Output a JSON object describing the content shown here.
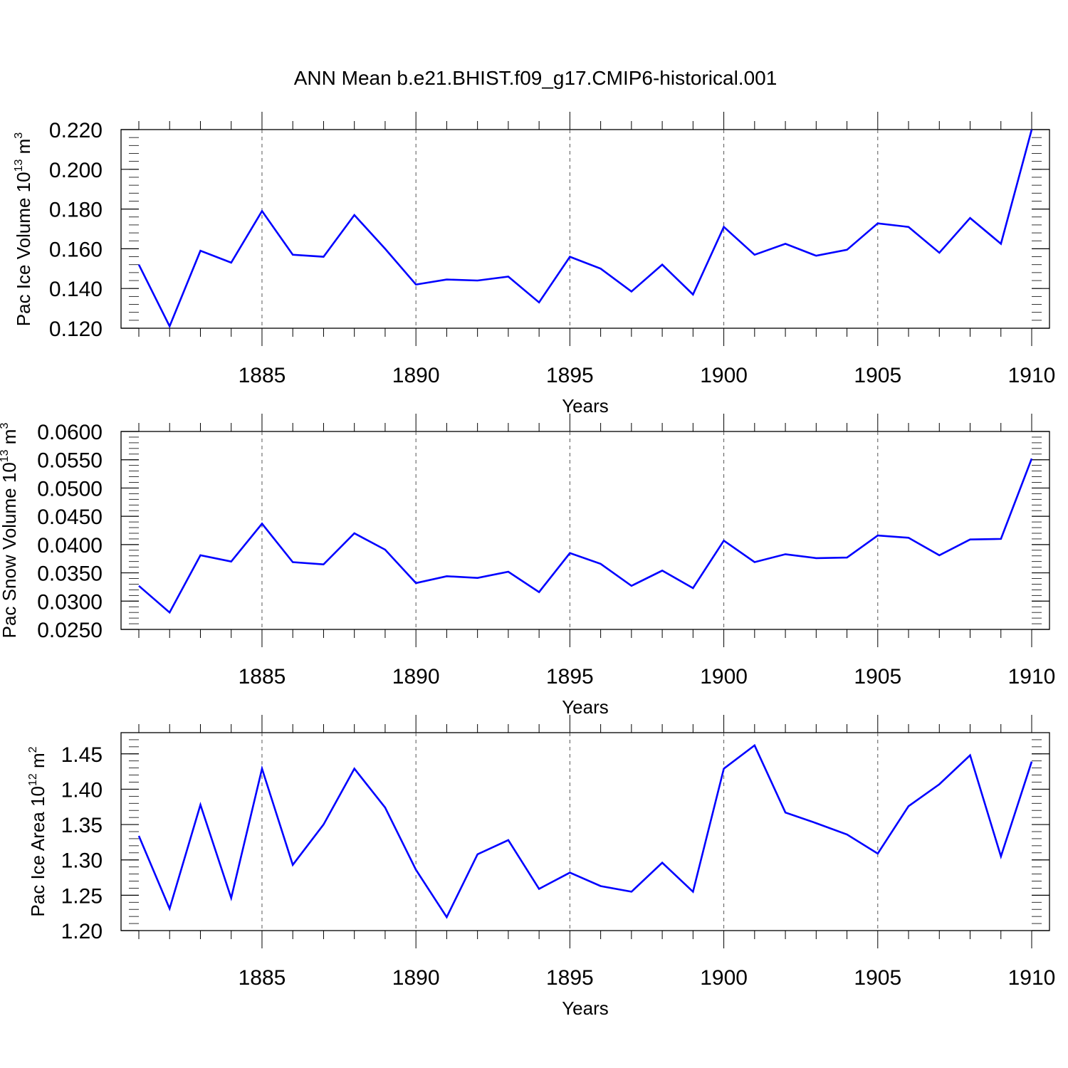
{
  "title": "ANN Mean b.e21.BHIST.f09_g17.CMIP6-historical.001",
  "colors": {
    "line": "#0000ff",
    "axis": "#000000",
    "grid": "#555555",
    "background": "#ffffff"
  },
  "chart_data": [
    {
      "type": "line",
      "ylabel": {
        "text": "Pac Ice Volume 10",
        "sup": "13",
        "unit": " m",
        "unit_sup": "3"
      },
      "xlabel": "Years",
      "xlim": [
        1881,
        1910
      ],
      "ylim": [
        0.12,
        0.22
      ],
      "yticks": [
        "0.120",
        "0.140",
        "0.160",
        "0.180",
        "0.200",
        "0.220"
      ],
      "xticks": [
        "1885",
        "1890",
        "1895",
        "1900",
        "1905",
        "1910"
      ],
      "grid": "dashed vertical at major x ticks",
      "series": [
        {
          "x": [
            1881,
            1882,
            1883,
            1884,
            1885,
            1886,
            1887,
            1888,
            1889,
            1890,
            1891,
            1892,
            1893,
            1894,
            1895,
            1896,
            1897,
            1898,
            1899,
            1900,
            1901,
            1902,
            1903,
            1904,
            1905,
            1906,
            1907,
            1908,
            1909,
            1910
          ],
          "values": [
            0.152,
            0.121,
            0.159,
            0.153,
            0.179,
            0.157,
            0.156,
            0.177,
            0.16,
            0.142,
            0.1445,
            0.144,
            0.146,
            0.133,
            0.156,
            0.15,
            0.1385,
            0.152,
            0.137,
            0.171,
            0.157,
            0.1625,
            0.1565,
            0.1595,
            0.1728,
            0.171,
            0.158,
            0.1755,
            0.1625,
            0.22
          ]
        }
      ]
    },
    {
      "type": "line",
      "ylabel": {
        "text": "Pac Snow Volume 10",
        "sup": "13",
        "unit": " m",
        "unit_sup": "3"
      },
      "xlabel": "Years",
      "xlim": [
        1881,
        1910
      ],
      "ylim": [
        0.025,
        0.06
      ],
      "yticks": [
        "0.0250",
        "0.0300",
        "0.0350",
        "0.0400",
        "0.0450",
        "0.0500",
        "0.0550",
        "0.0600"
      ],
      "xticks": [
        "1885",
        "1890",
        "1895",
        "1900",
        "1905",
        "1910"
      ],
      "grid": "dashed vertical at major x ticks",
      "series": [
        {
          "x": [
            1881,
            1882,
            1883,
            1884,
            1885,
            1886,
            1887,
            1888,
            1889,
            1890,
            1891,
            1892,
            1893,
            1894,
            1895,
            1896,
            1897,
            1898,
            1899,
            1900,
            1901,
            1902,
            1903,
            1904,
            1905,
            1906,
            1907,
            1908,
            1909,
            1910
          ],
          "values": [
            0.0327,
            0.028,
            0.0381,
            0.037,
            0.0437,
            0.0369,
            0.0365,
            0.042,
            0.0391,
            0.0332,
            0.0344,
            0.0341,
            0.0352,
            0.0316,
            0.0385,
            0.0366,
            0.0327,
            0.0354,
            0.0323,
            0.0407,
            0.0369,
            0.0383,
            0.0376,
            0.0377,
            0.0416,
            0.0412,
            0.0381,
            0.0409,
            0.041,
            0.0552
          ]
        }
      ]
    },
    {
      "type": "line",
      "ylabel": {
        "text": "Pac Ice Area 10",
        "sup": "12",
        "unit": " m",
        "unit_sup": "2"
      },
      "xlabel": "Years",
      "xlim": [
        1881,
        1910
      ],
      "ylim": [
        1.2,
        1.48
      ],
      "yticks": [
        "1.20",
        "1.25",
        "1.30",
        "1.35",
        "1.40",
        "1.45"
      ],
      "xticks": [
        "1885",
        "1890",
        "1895",
        "1900",
        "1905",
        "1910"
      ],
      "grid": "dashed vertical at major x ticks",
      "series": [
        {
          "x": [
            1881,
            1882,
            1883,
            1884,
            1885,
            1886,
            1887,
            1888,
            1889,
            1890,
            1891,
            1892,
            1893,
            1894,
            1895,
            1896,
            1897,
            1898,
            1899,
            1900,
            1901,
            1902,
            1903,
            1904,
            1905,
            1906,
            1907,
            1908,
            1909,
            1910
          ],
          "values": [
            1.334,
            1.231,
            1.378,
            1.246,
            1.429,
            1.293,
            1.35,
            1.429,
            1.374,
            1.286,
            1.219,
            1.308,
            1.328,
            1.259,
            1.282,
            1.263,
            1.255,
            1.296,
            1.255,
            1.429,
            1.462,
            1.367,
            1.352,
            1.336,
            1.309,
            1.376,
            1.407,
            1.448,
            1.305,
            1.439
          ]
        }
      ]
    }
  ]
}
